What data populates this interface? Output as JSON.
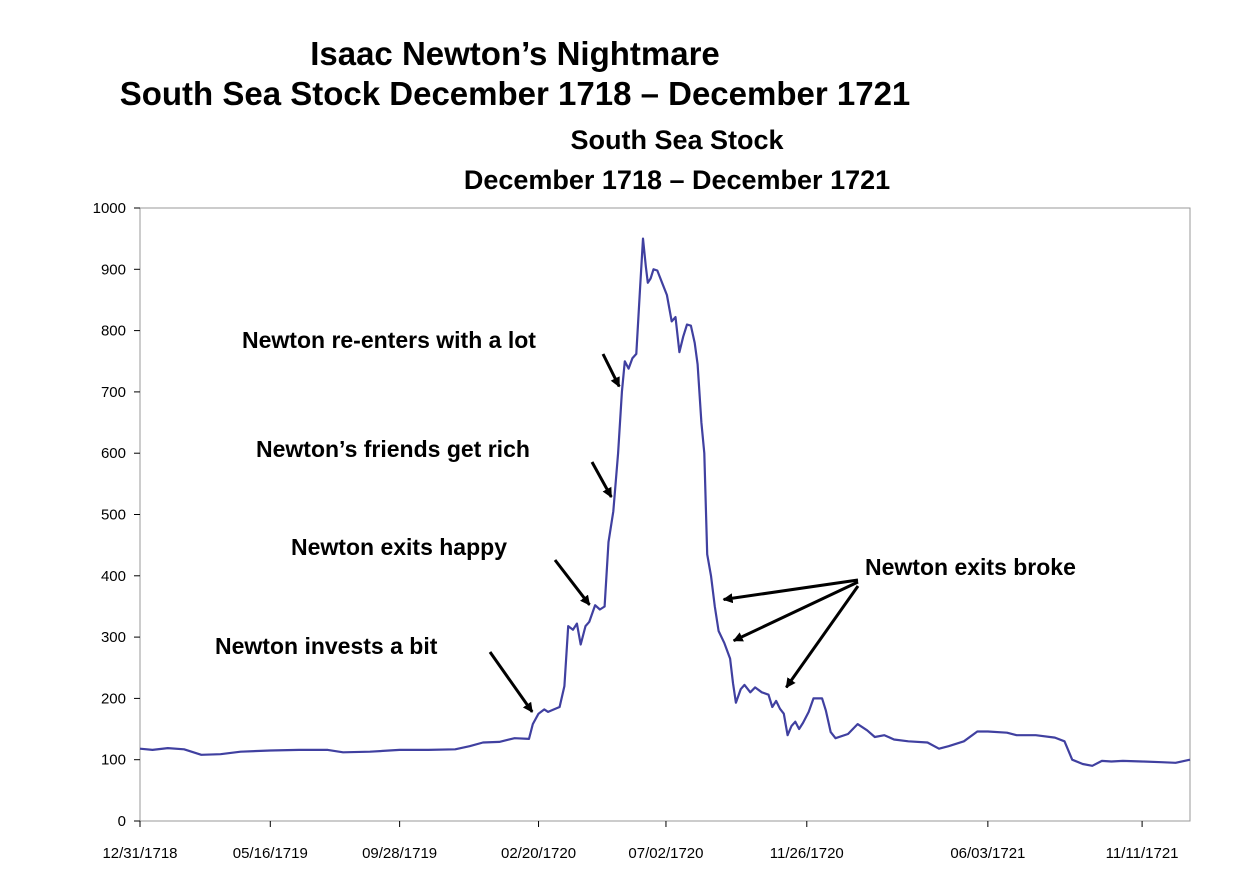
{
  "slide": {
    "title_line1": "Isaac Newton’s Nightmare",
    "title_line2": "South Sea Stock December 1718 – December 1721"
  },
  "chart_data": {
    "type": "line",
    "title_line1": "South Sea Stock",
    "title_line2": "December 1718 – December 1721",
    "xlabel": "",
    "ylabel": "",
    "ylim": [
      0,
      1000
    ],
    "yticks": [
      0,
      100,
      200,
      300,
      400,
      500,
      600,
      700,
      800,
      900,
      1000
    ],
    "xlim": [
      "1718-12-31",
      "1721-12-31"
    ],
    "xticks": [
      {
        "date": "1718-12-31",
        "label": "12/31/1718"
      },
      {
        "date": "1719-05-16",
        "label": "05/16/1719"
      },
      {
        "date": "1719-09-28",
        "label": "09/28/1719"
      },
      {
        "date": "1720-02-20",
        "label": "02/20/1720"
      },
      {
        "date": "1720-07-02",
        "label": "07/02/1720"
      },
      {
        "date": "1720-11-26",
        "label": "11/26/1720"
      },
      {
        "date": "1721-06-03",
        "label": "06/03/1721"
      },
      {
        "date": "1721-11-11",
        "label": "11/11/1721"
      }
    ],
    "grid": false,
    "legend": "none",
    "series": [
      {
        "color": "#4040a0",
        "points": [
          [
            "1718-12-31",
            118
          ],
          [
            "1719-01-13",
            116
          ],
          [
            "1719-01-29",
            119
          ],
          [
            "1719-02-15",
            117
          ],
          [
            "1719-03-05",
            108
          ],
          [
            "1719-03-25",
            109
          ],
          [
            "1719-04-15",
            113
          ],
          [
            "1719-05-16",
            115
          ],
          [
            "1719-06-15",
            116
          ],
          [
            "1719-07-15",
            116
          ],
          [
            "1719-07-31",
            112
          ],
          [
            "1719-08-28",
            113
          ],
          [
            "1719-09-28",
            116
          ],
          [
            "1719-10-28",
            116
          ],
          [
            "1719-11-25",
            117
          ],
          [
            "1719-12-10",
            122
          ],
          [
            "1719-12-24",
            128
          ],
          [
            "1720-01-10",
            129
          ],
          [
            "1720-01-26",
            135
          ],
          [
            "1720-02-10",
            134
          ],
          [
            "1720-02-14",
            158
          ],
          [
            "1720-02-20",
            175
          ],
          [
            "1720-02-26",
            182
          ],
          [
            "1720-03-01",
            178
          ],
          [
            "1720-03-07",
            182
          ],
          [
            "1720-03-13",
            186
          ],
          [
            "1720-03-18",
            220
          ],
          [
            "1720-03-22",
            318
          ],
          [
            "1720-03-27",
            312
          ],
          [
            "1720-03-31",
            322
          ],
          [
            "1720-04-04",
            288
          ],
          [
            "1720-04-09",
            318
          ],
          [
            "1720-04-13",
            325
          ],
          [
            "1720-04-19",
            352
          ],
          [
            "1720-04-24",
            345
          ],
          [
            "1720-04-29",
            350
          ],
          [
            "1720-05-03",
            455
          ],
          [
            "1720-05-08",
            505
          ],
          [
            "1720-05-13",
            600
          ],
          [
            "1720-05-17",
            700
          ],
          [
            "1720-05-20",
            750
          ],
          [
            "1720-05-24",
            738
          ],
          [
            "1720-05-28",
            755
          ],
          [
            "1720-06-01",
            762
          ],
          [
            "1720-06-05",
            870
          ],
          [
            "1720-06-08",
            950
          ],
          [
            "1720-06-11",
            905
          ],
          [
            "1720-06-13",
            878
          ],
          [
            "1720-06-16",
            885
          ],
          [
            "1720-06-19",
            900
          ],
          [
            "1720-06-23",
            898
          ],
          [
            "1720-06-28",
            878
          ],
          [
            "1720-07-03",
            858
          ],
          [
            "1720-07-08",
            815
          ],
          [
            "1720-07-12",
            822
          ],
          [
            "1720-07-16",
            765
          ],
          [
            "1720-07-20",
            790
          ],
          [
            "1720-07-24",
            810
          ],
          [
            "1720-07-28",
            808
          ],
          [
            "1720-08-01",
            780
          ],
          [
            "1720-08-04",
            745
          ],
          [
            "1720-08-08",
            650
          ],
          [
            "1720-08-11",
            600
          ],
          [
            "1720-08-14",
            435
          ],
          [
            "1720-08-18",
            400
          ],
          [
            "1720-08-22",
            350
          ],
          [
            "1720-08-26",
            310
          ],
          [
            "1720-09-01",
            290
          ],
          [
            "1720-09-07",
            265
          ],
          [
            "1720-09-10",
            225
          ],
          [
            "1720-09-13",
            193
          ],
          [
            "1720-09-18",
            215
          ],
          [
            "1720-09-22",
            222
          ],
          [
            "1720-09-28",
            210
          ],
          [
            "1720-10-03",
            218
          ],
          [
            "1720-10-10",
            210
          ],
          [
            "1720-10-17",
            206
          ],
          [
            "1720-10-21",
            186
          ],
          [
            "1720-10-25",
            196
          ],
          [
            "1720-10-29",
            183
          ],
          [
            "1720-11-02",
            175
          ],
          [
            "1720-11-06",
            140
          ],
          [
            "1720-11-10",
            155
          ],
          [
            "1720-11-14",
            162
          ],
          [
            "1720-11-18",
            150
          ],
          [
            "1720-11-22",
            160
          ],
          [
            "1720-11-28",
            178
          ],
          [
            "1720-12-03",
            200
          ],
          [
            "1720-12-12",
            200
          ],
          [
            "1720-12-16",
            180
          ],
          [
            "1720-12-21",
            145
          ],
          [
            "1720-12-26",
            135
          ],
          [
            "1721-01-08",
            142
          ],
          [
            "1721-01-18",
            158
          ],
          [
            "1721-01-28",
            148
          ],
          [
            "1721-02-05",
            137
          ],
          [
            "1721-02-15",
            140
          ],
          [
            "1721-02-25",
            133
          ],
          [
            "1721-03-12",
            130
          ],
          [
            "1721-04-01",
            128
          ],
          [
            "1721-04-13",
            118
          ],
          [
            "1721-04-23",
            122
          ],
          [
            "1721-05-09",
            130
          ],
          [
            "1721-05-23",
            146
          ],
          [
            "1721-06-03",
            146
          ],
          [
            "1721-06-23",
            144
          ],
          [
            "1721-07-03",
            140
          ],
          [
            "1721-07-23",
            140
          ],
          [
            "1721-08-12",
            136
          ],
          [
            "1721-08-22",
            130
          ],
          [
            "1721-08-30",
            100
          ],
          [
            "1721-09-10",
            93
          ],
          [
            "1721-09-20",
            90
          ],
          [
            "1721-09-30",
            98
          ],
          [
            "1721-10-10",
            97
          ],
          [
            "1721-10-22",
            98
          ],
          [
            "1721-11-11",
            97
          ],
          [
            "1721-12-01",
            96
          ],
          [
            "1721-12-16",
            95
          ],
          [
            "1721-12-31",
            100
          ]
        ]
      }
    ],
    "annotations": [
      {
        "text": "Newton re-enters with a lot",
        "arrow_to": [
          [
            "1720-05-17",
            700
          ]
        ]
      },
      {
        "text": "Newton’s friends get rich",
        "arrow_to": [
          [
            "1720-05-09",
            520
          ]
        ]
      },
      {
        "text": "Newton exits happy",
        "arrow_to": [
          [
            "1720-04-17",
            345
          ]
        ]
      },
      {
        "text": "Newton invests a bit",
        "arrow_to": [
          [
            "1720-02-17",
            170
          ]
        ]
      },
      {
        "text": "Newton exits broke",
        "arrow_to": [
          [
            "1720-08-25",
            360
          ],
          [
            "1720-09-05",
            290
          ],
          [
            "1720-11-01",
            210
          ]
        ]
      }
    ]
  }
}
